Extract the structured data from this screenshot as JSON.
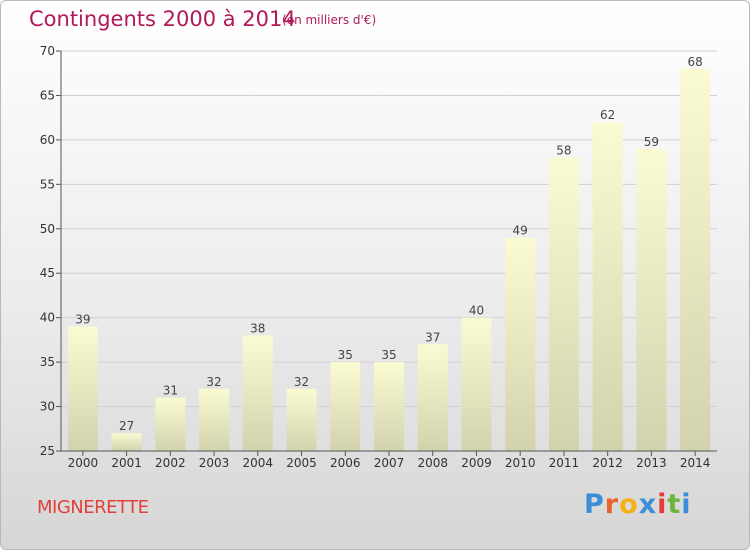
{
  "header": {
    "title": "Contingents 2000 à 2014",
    "subtitle": "(en milliers d'€)"
  },
  "footer": {
    "place": "MIGNERETTE",
    "logo": {
      "text": "Proxiti",
      "letter_colors": [
        "#3a8fd8",
        "#e8622a",
        "#f2b218",
        "#3a8fd8",
        "#e83a3a",
        "#6bb63a",
        "#3a8fd8"
      ]
    }
  },
  "colors": {
    "title": "#b0195a",
    "place": "#e2403a",
    "bar_top": "#fbfbd3",
    "bar_bottom": "#d2d2ad",
    "grid": "#d0d0d0"
  },
  "chart_data": {
    "type": "bar",
    "categories": [
      "2000",
      "2001",
      "2002",
      "2003",
      "2004",
      "2005",
      "2006",
      "2007",
      "2008",
      "2009",
      "2010",
      "2011",
      "2012",
      "2013",
      "2014"
    ],
    "values": [
      39,
      27,
      31,
      32,
      38,
      32,
      35,
      35,
      37,
      40,
      49,
      58,
      62,
      59,
      68
    ],
    "ylim": [
      25,
      70
    ],
    "yticks": [
      25,
      30,
      35,
      40,
      45,
      50,
      55,
      60,
      65,
      70
    ],
    "grid": true,
    "data_labels": true
  }
}
